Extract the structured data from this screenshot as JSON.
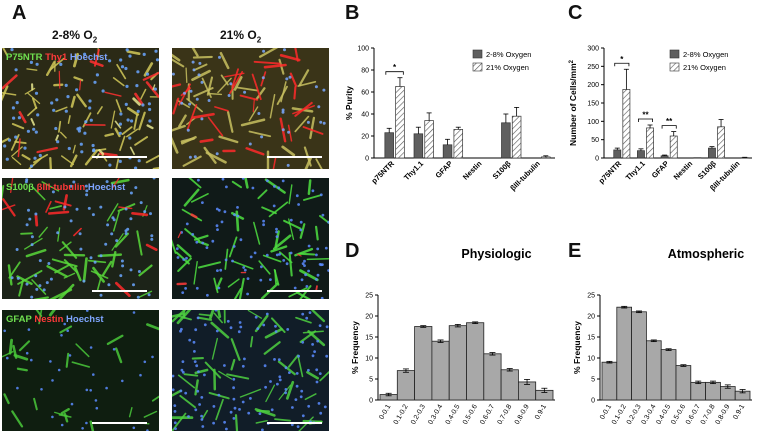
{
  "panels": {
    "A": "A",
    "B": "B",
    "C": "C",
    "D": "D",
    "E": "E"
  },
  "column_headers": {
    "physiologic": {
      "prefix": "2-8% O",
      "sub": "2"
    },
    "atmospheric": {
      "prefix": "21% O",
      "sub": "2"
    }
  },
  "micrographs": {
    "row1": {
      "green": "P75NTR",
      "red": "Thy1",
      "blue": "Hoechst"
    },
    "row2": {
      "green": "S100β",
      "red": "βIII-tubulin",
      "blue": "Hoechst"
    },
    "row3": {
      "green": "GFAP",
      "red": "Nestin",
      "blue": "Hoechst"
    }
  },
  "colors": {
    "bar_dark": "#5f5f5f",
    "bar_hatched_bg": "#ffffff",
    "hist_bar": "#a8a8a8",
    "stain_green": "#6fe04f",
    "stain_red": "#ff3a3a",
    "stain_blue": "#7fa6ff"
  },
  "chart_data": [
    {
      "panel": "B",
      "type": "bar",
      "ylabel": "% Purity",
      "ylim": [
        0,
        100
      ],
      "yticks": [
        0,
        20,
        40,
        60,
        80,
        100
      ],
      "categories": [
        "p75NTR",
        "Thy1.1",
        "GFAP",
        "Nestin",
        "S100β",
        "βIII-tubulin"
      ],
      "series": [
        {
          "name": "2-8% Oxygen",
          "style": "solid",
          "values": [
            23,
            22,
            12,
            0,
            32,
            0
          ],
          "errors": [
            4,
            6,
            5,
            0,
            8,
            0
          ]
        },
        {
          "name": "21% Oxygen",
          "style": "hatched",
          "values": [
            65,
            34,
            26,
            0,
            38,
            1
          ],
          "errors": [
            8,
            7,
            2,
            0,
            8,
            1
          ]
        }
      ],
      "significance": [
        {
          "category": "p75NTR",
          "label": "*"
        }
      ],
      "legend": "top-right"
    },
    {
      "panel": "C",
      "type": "bar",
      "ylabel_prefix": "Number of Cells/mm",
      "ylabel_sup": "2",
      "ylim": [
        0,
        300
      ],
      "yticks": [
        0,
        50,
        100,
        150,
        200,
        250,
        300
      ],
      "categories": [
        "p75NTR",
        "Thy1.1",
        "GFAP",
        "Nestin",
        "S100β",
        "βIII-tubulin"
      ],
      "series": [
        {
          "name": "2-8% Oxygen",
          "style": "solid",
          "values": [
            22,
            20,
            6,
            0,
            27,
            0
          ],
          "errors": [
            5,
            5,
            2,
            0,
            4,
            0
          ]
        },
        {
          "name": "21% Oxygen",
          "style": "hatched",
          "values": [
            187,
            82,
            60,
            1,
            85,
            1
          ],
          "errors": [
            55,
            8,
            12,
            0,
            20,
            1
          ]
        }
      ],
      "significance": [
        {
          "category": "p75NTR",
          "label": "*"
        },
        {
          "category": "Thy1.1",
          "label": "**"
        },
        {
          "category": "GFAP",
          "label": "**"
        }
      ],
      "legend": "top-right"
    },
    {
      "panel": "D",
      "type": "bar",
      "title": "Physiologic",
      "ylabel": "% Frequency",
      "ylim": [
        0,
        25
      ],
      "yticks": [
        0,
        5,
        10,
        15,
        20,
        25
      ],
      "categories": [
        "0-0.1",
        "0.1-0.2",
        "0.2-0.3",
        "0.3-0.4",
        "0.4-0.5",
        "0.5-0.6",
        "0.6-0.7",
        "0.7-0.8",
        "0.8-0.9",
        "0.9-1"
      ],
      "values": [
        1.3,
        7.0,
        17.5,
        14.0,
        17.7,
        18.4,
        11.0,
        7.2,
        4.3,
        2.3
      ],
      "errors": [
        0.3,
        0.4,
        0.2,
        0.3,
        0.3,
        0.2,
        0.3,
        0.3,
        0.6,
        0.5
      ]
    },
    {
      "panel": "E",
      "type": "bar",
      "title": "Atmospheric",
      "ylabel": "% Frequency",
      "ylim": [
        0,
        25
      ],
      "yticks": [
        0,
        5,
        10,
        15,
        20,
        25
      ],
      "categories": [
        "0-0.1",
        "0.1-0.2",
        "0.2-0.3",
        "0.3-0.4",
        "0.4-0.5",
        "0.5-0.6",
        "0.6-0.7",
        "0.7-0.8",
        "0.8-0.9",
        "0.9-1"
      ],
      "values": [
        9.0,
        22.1,
        21.0,
        14.1,
        12.0,
        8.2,
        4.2,
        4.2,
        3.2,
        2.1
      ],
      "errors": [
        0.2,
        0.2,
        0.2,
        0.2,
        0.2,
        0.2,
        0.3,
        0.3,
        0.4,
        0.4
      ]
    }
  ]
}
